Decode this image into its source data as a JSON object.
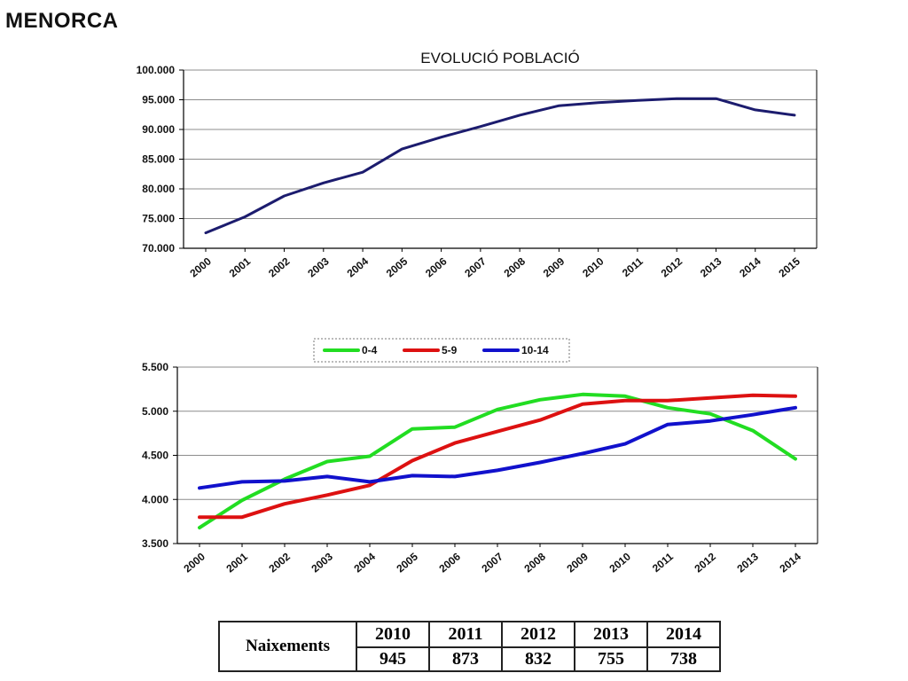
{
  "page": {
    "title": "MENORCA"
  },
  "chart_data": [
    {
      "type": "line",
      "title": "EVOLUCIÓ POBLACIÓ",
      "x": [
        "2000",
        "2001",
        "2002",
        "2003",
        "2004",
        "2005",
        "2006",
        "2007",
        "2008",
        "2009",
        "2010",
        "2011",
        "2012",
        "2013",
        "2014",
        "2015"
      ],
      "series": [
        {
          "values": [
            72600,
            75300,
            78800,
            81000,
            82800,
            86700,
            88700,
            90500,
            92400,
            94000,
            94500,
            94900,
            95200,
            95200,
            93300,
            92400
          ]
        }
      ],
      "ylim": [
        70000,
        100000
      ],
      "yticks": [
        "70.000",
        "75.000",
        "80.000",
        "85.000",
        "90.000",
        "95.000",
        "100.000"
      ],
      "grid": true,
      "colors": {
        "line": "#1c1c6e",
        "grid": "#8c8c8c"
      }
    },
    {
      "type": "line",
      "title": "",
      "x": [
        "2000",
        "2001",
        "2002",
        "2003",
        "2004",
        "2005",
        "2006",
        "2007",
        "2008",
        "2009",
        "2010",
        "2011",
        "2012",
        "2013",
        "2014"
      ],
      "series": [
        {
          "name": "0-4",
          "color": "#22dd22",
          "values": [
            3680,
            3990,
            4230,
            4430,
            4490,
            4800,
            4820,
            5020,
            5130,
            5190,
            5170,
            5040,
            4970,
            4780,
            4460
          ]
        },
        {
          "name": "5-9",
          "color": "#dd1111",
          "values": [
            3800,
            3800,
            3950,
            4050,
            4160,
            4440,
            4640,
            4770,
            4900,
            5080,
            5120,
            5120,
            5150,
            5180,
            5170
          ]
        },
        {
          "name": "10-14",
          "color": "#1111cc",
          "values": [
            4130,
            4200,
            4210,
            4260,
            4200,
            4270,
            4260,
            4330,
            4420,
            4520,
            4630,
            4850,
            4890,
            4960,
            5040
          ]
        }
      ],
      "ylim": [
        3500,
        5500
      ],
      "yticks": [
        "3.500",
        "4.000",
        "4.500",
        "5.000",
        "5.500"
      ],
      "legend": "top-center",
      "grid": true,
      "colors": {
        "grid": "#8c8c8c"
      }
    }
  ],
  "table": {
    "row_label": "Naixements",
    "years": [
      "2010",
      "2011",
      "2012",
      "2013",
      "2014"
    ],
    "values": [
      "945",
      "873",
      "832",
      "755",
      "738"
    ]
  }
}
